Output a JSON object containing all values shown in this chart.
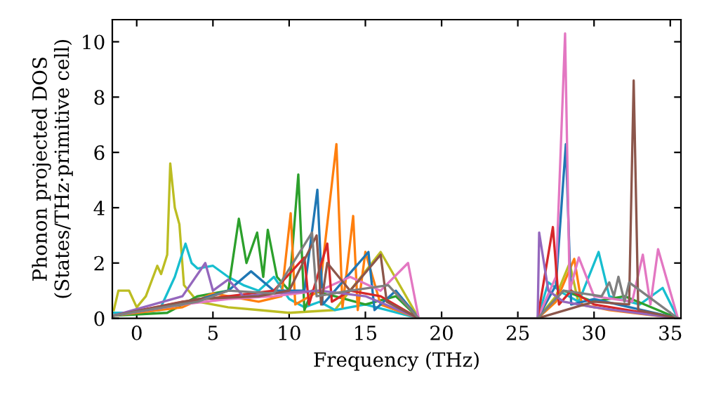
{
  "chart_data": {
    "type": "line",
    "xlabel": "Frequency (THz)",
    "ylabel": "Phonon projected DOS\n(States/THz·primitive cell)",
    "xlim": [
      -1.6,
      35.7
    ],
    "ylim": [
      0,
      10.8
    ],
    "xticks": [
      0,
      5,
      10,
      15,
      20,
      25,
      30,
      35
    ],
    "yticks": [
      0,
      2,
      4,
      6,
      8,
      10
    ],
    "series": [
      {
        "color": "#bcbd22",
        "x": [
          -1.5,
          -1.2,
          -0.5,
          0,
          0.6,
          1.35,
          1.6,
          2.0,
          2.2,
          2.5,
          2.8,
          3.1,
          4,
          6,
          8,
          10,
          13,
          16,
          18.5,
          26.3,
          27.5,
          28.4,
          29,
          30
        ],
        "values": [
          0.3,
          1.0,
          1.0,
          0.4,
          0.8,
          1.9,
          1.6,
          2.3,
          5.6,
          4.0,
          3.4,
          1.2,
          0.6,
          0.4,
          0.3,
          0.2,
          0.3,
          2.4,
          0,
          0,
          0.8,
          2.0,
          0.5,
          0.4
        ]
      },
      {
        "color": "#17becf",
        "x": [
          -1.5,
          0,
          1.5,
          2.5,
          3.2,
          3.6,
          4,
          5,
          6,
          7,
          8,
          9,
          10,
          11,
          12,
          13,
          15,
          18.5,
          26.3,
          27,
          28,
          29,
          30.3,
          31,
          33,
          34.5,
          35.5
        ],
        "values": [
          0.2,
          0.2,
          0.3,
          1.5,
          2.7,
          2.0,
          1.8,
          1.9,
          1.5,
          1.2,
          1.0,
          1.5,
          0.7,
          0.4,
          0.6,
          0.3,
          0.5,
          0,
          0,
          1.3,
          0.9,
          0.6,
          2.4,
          0.8,
          0.5,
          1.1,
          0
        ]
      },
      {
        "color": "#2ca02c",
        "x": [
          -1.5,
          2,
          4,
          6,
          6.7,
          7.2,
          7.9,
          8.3,
          8.6,
          9.2,
          10,
          10.6,
          11,
          11.5,
          13,
          15,
          17,
          18.5,
          26.3,
          28,
          30,
          32,
          35.5
        ],
        "values": [
          0.1,
          0.2,
          0.8,
          1.0,
          3.6,
          2.0,
          3.1,
          1.5,
          3.2,
          1.5,
          1.0,
          5.2,
          0.3,
          1.0,
          0.8,
          0.5,
          0.8,
          0,
          0,
          1.0,
          0.6,
          0.8,
          0
        ]
      },
      {
        "color": "#ff7f0e",
        "x": [
          -1.5,
          3,
          5,
          8,
          9.5,
          10.1,
          10.4,
          12,
          13.1,
          13.5,
          14.2,
          14.5,
          15,
          16,
          18.5,
          26.3,
          27.5,
          28.7,
          29.2,
          31,
          35.5
        ],
        "values": [
          0.1,
          0.4,
          0.9,
          0.6,
          0.8,
          3.8,
          0.5,
          1.0,
          6.3,
          0.4,
          3.7,
          0.3,
          2.4,
          0.5,
          0,
          0,
          0.6,
          2.15,
          0.5,
          0.3,
          0
        ]
      },
      {
        "color": "#1f77b4",
        "x": [
          -1.5,
          3,
          6,
          7.5,
          9,
          11,
          11.85,
          12.2,
          13,
          15.2,
          15.6,
          17,
          18.5,
          26.3,
          27.5,
          28.15,
          28.5,
          30,
          35.5
        ],
        "values": [
          0.1,
          0.5,
          1.0,
          1.7,
          1.0,
          1.0,
          4.65,
          0.5,
          1.0,
          2.4,
          0.3,
          1.0,
          0,
          0,
          1.2,
          6.3,
          0.5,
          0.7,
          0
        ]
      },
      {
        "color": "#e377c2",
        "x": [
          -1.5,
          3,
          6,
          9,
          12,
          14,
          16,
          17.8,
          18.5,
          26.3,
          27.5,
          28.1,
          28.4,
          29,
          30,
          32.5,
          33.2,
          33.7,
          34.2,
          35.5
        ],
        "values": [
          0.1,
          0.5,
          0.7,
          0.8,
          1.0,
          1.5,
          1.0,
          2.0,
          0,
          0,
          1.5,
          10.3,
          1.0,
          2.2,
          0.8,
          0.6,
          2.3,
          0.5,
          2.5,
          0
        ]
      },
      {
        "color": "#d62728",
        "x": [
          -1.5,
          3,
          6,
          9,
          11,
          11.3,
          12.5,
          12.8,
          14,
          16,
          18.5,
          26.3,
          27.3,
          27.7,
          28.5,
          30,
          35.5
        ],
        "values": [
          0.1,
          0.6,
          0.8,
          1.0,
          2.2,
          0.5,
          2.7,
          0.6,
          1.0,
          0.8,
          0,
          0,
          3.3,
          0.5,
          1.0,
          0.5,
          0
        ]
      },
      {
        "color": "#9467bd",
        "x": [
          -1.5,
          3,
          4.5,
          5,
          6,
          7,
          9,
          12,
          15,
          18.5,
          26.3,
          26.4,
          27,
          28,
          30,
          35.5
        ],
        "values": [
          0.1,
          0.8,
          2.0,
          1.0,
          1.4,
          0.8,
          0.9,
          1.0,
          0.8,
          0,
          0,
          3.1,
          1.0,
          0.6,
          0.4,
          0
        ]
      },
      {
        "color": "#8c564b",
        "x": [
          -1.5,
          4,
          8,
          10,
          11.8,
          12.1,
          12.5,
          14,
          16,
          16.4,
          18.5,
          26.3,
          30,
          32.3,
          32.6,
          32.9,
          35.5
        ],
        "values": [
          0.1,
          0.7,
          0.8,
          1.0,
          3.0,
          0.5,
          2.0,
          1.0,
          2.3,
          0.6,
          0,
          0,
          0.6,
          0.5,
          8.6,
          0.3,
          0
        ]
      },
      {
        "color": "#7f7f7f",
        "x": [
          -1.5,
          4,
          6,
          9,
          11.5,
          11.8,
          14,
          16.5,
          18.5,
          26.3,
          28,
          30.5,
          31,
          31.3,
          31.6,
          32,
          32.3,
          35.5
        ],
        "values": [
          0.1,
          0.6,
          1.0,
          0.9,
          3.1,
          0.8,
          1.0,
          1.2,
          0,
          0,
          1.0,
          0.8,
          1.3,
          0.8,
          1.5,
          0.6,
          1.3,
          0
        ]
      }
    ]
  }
}
